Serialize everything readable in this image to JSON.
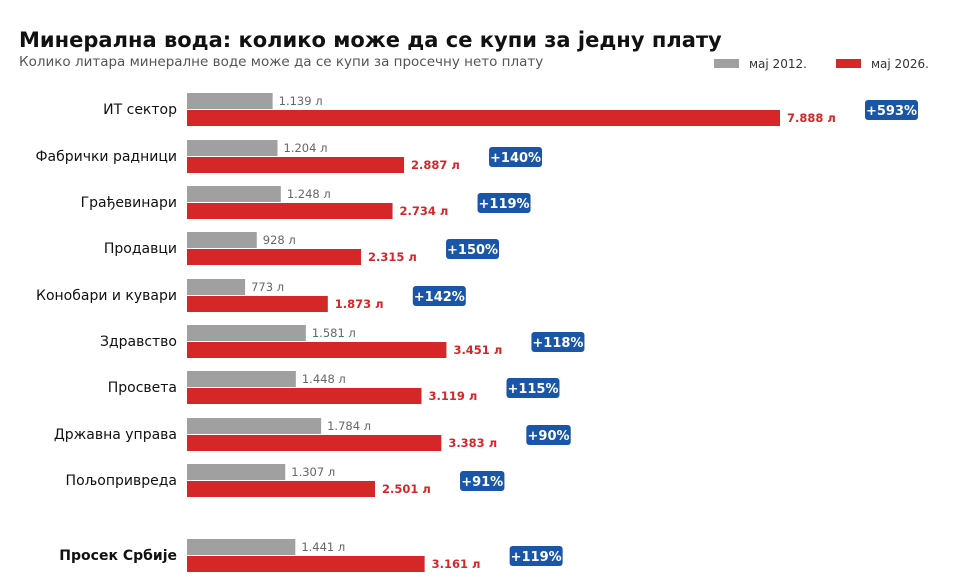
{
  "chart_data": {
    "type": "bar",
    "orientation": "horizontal",
    "title": "Минерална вода: колико може да се купи за једну плату",
    "subtitle": "Колико литара минералне воде може да се купи за просечну нето плату",
    "legend_position": "top-right",
    "grid": false,
    "unit": "л",
    "xlim": [
      0,
      8000
    ],
    "categories": [
      "ИТ сектор",
      "Фабрички радници",
      "Грађевинари",
      "Продавци",
      "Конобари и кувари",
      "Здравство",
      "Просвета",
      "Државна управа",
      "Пољопривреда",
      "Просек Србије"
    ],
    "series": [
      {
        "name": "мај 2012.",
        "color": "#a0a0a0",
        "values": [
          1139,
          1204,
          1248,
          928,
          773,
          1581,
          1448,
          1784,
          1307,
          1441
        ],
        "labels": [
          "1.139 л",
          "1.204 л",
          "1.248 л",
          "928 л",
          "773 л",
          "1.581 л",
          "1.448 л",
          "1.784 л",
          "1.307 л",
          "1.441 л"
        ]
      },
      {
        "name": "мај 2026.",
        "color": "#d62728",
        "values": [
          7888,
          2887,
          2734,
          2315,
          1873,
          3451,
          3119,
          3383,
          2501,
          3161
        ],
        "labels": [
          "7.888 л",
          "2.887 л",
          "2.734 л",
          "2.315 л",
          "1.873 л",
          "3.451 л",
          "3.119 л",
          "3.383 л",
          "2.501 л",
          "3.161 л"
        ]
      }
    ],
    "change_labels": [
      "+593%",
      "+140%",
      "+119%",
      "+150%",
      "+142%",
      "+118%",
      "+115%",
      "+90%",
      "+91%",
      "+119%"
    ],
    "change_badge_color": "#1a56a8",
    "highlighted_category": "Просек Србије"
  }
}
